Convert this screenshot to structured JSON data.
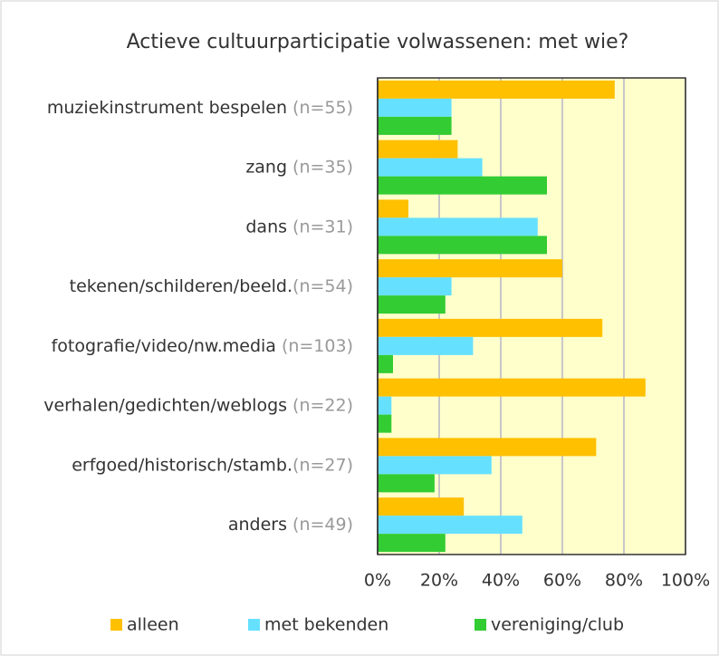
{
  "chart_data": {
    "type": "bar",
    "orientation": "horizontal",
    "title": "Actieve cultuurparticipatie volwassenen: met wie?",
    "categories": [
      "muziekinstrument bespelen",
      "zang",
      "dans",
      "tekenen/schilderen/beeld.",
      "fotografie/video/nw.media",
      "verhalen/gedichten/weblogs",
      "erfgoed/historisch/stamb.",
      "anders"
    ],
    "category_notes": [
      "(n=55)",
      "(n=35)",
      "(n=31)",
      "(n=54)",
      "(n=103)",
      "(n=22)",
      "(n=27)",
      "(n=49)"
    ],
    "series": [
      {
        "name": "alleen",
        "color": "#ffc000",
        "values": [
          77,
          26,
          10,
          60,
          73,
          87,
          71,
          28
        ]
      },
      {
        "name": "met bekenden",
        "color": "#66e0ff",
        "values": [
          24,
          34,
          52,
          24,
          31,
          4.5,
          37,
          47
        ]
      },
      {
        "name": "vereniging/club",
        "color": "#33cc33",
        "values": [
          24,
          55,
          55,
          22,
          5,
          4.5,
          18.5,
          22
        ]
      }
    ],
    "xlim": [
      0,
      100
    ],
    "xticks": [
      {
        "value": 0,
        "label": "0%"
      },
      {
        "value": 20,
        "label": "20%"
      },
      {
        "value": 40,
        "label": "40%"
      },
      {
        "value": 60,
        "label": "60%"
      },
      {
        "value": 80,
        "label": "80%"
      },
      {
        "value": 100,
        "label": "100%"
      }
    ],
    "grid": true,
    "plot_background": "#ffffcc",
    "legend": "bottom"
  }
}
